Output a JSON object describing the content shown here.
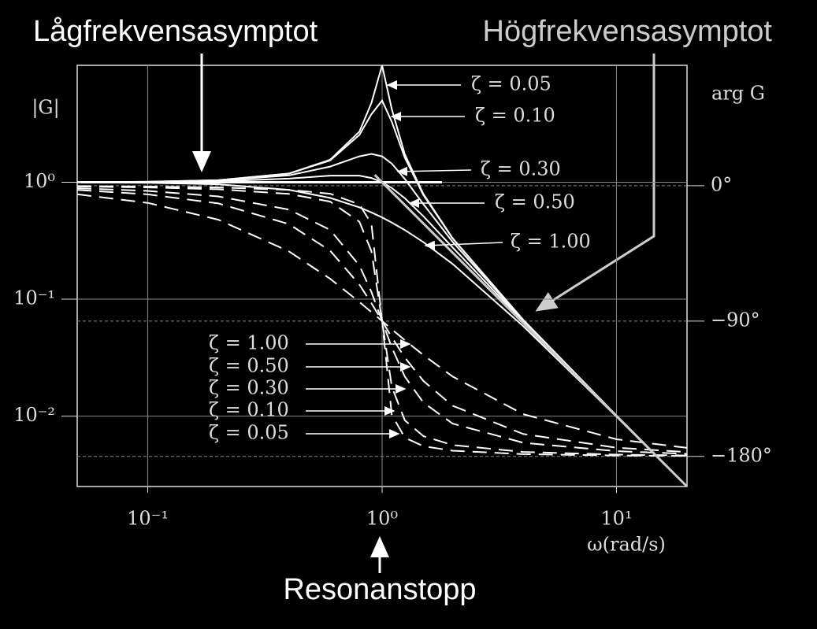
{
  "chart_data": {
    "type": "line",
    "x_label": "ω(rad/s)",
    "y_label": "|G|",
    "y2_label": "arg G",
    "xscale": "log",
    "yscale": "log",
    "xlim": [
      0.05,
      20
    ],
    "ylim": [
      0.0025,
      10
    ],
    "y2lim": [
      -200,
      80
    ],
    "xticks": [
      {
        "value": 0.1,
        "label": "10⁻¹"
      },
      {
        "value": 1,
        "label": "10⁰"
      },
      {
        "value": 10,
        "label": "10¹"
      }
    ],
    "yticks": [
      {
        "value": 0.01,
        "label": "10⁻²"
      },
      {
        "value": 0.1,
        "label": "10⁻¹"
      },
      {
        "value": 1,
        "label": "10⁰"
      }
    ],
    "y2ticks": [
      {
        "value": -180,
        "label": "−180°"
      },
      {
        "value": -90,
        "label": "−90°"
      },
      {
        "value": 0,
        "label": "0°"
      }
    ],
    "grid": true,
    "x": [
      0.05,
      0.1,
      0.2,
      0.4,
      0.6,
      0.8,
      0.9,
      1,
      1.1,
      1.25,
      1.5,
      2,
      4,
      10,
      20
    ],
    "series": [
      {
        "name": "ζ = 0.05",
        "color": "#ffffff",
        "values": [
          1.003,
          1.01,
          1.041,
          1.189,
          1.556,
          2.712,
          4.757,
          10,
          4.218,
          1.736,
          0.794,
          0.333,
          0.0666,
          0.0101,
          0.002506
        ]
      },
      {
        "name": "ζ = 0.10",
        "color": "#ffffff",
        "values": [
          1.002,
          1.01,
          1.041,
          1.185,
          1.536,
          2.538,
          3.821,
          5,
          3.288,
          1.625,
          0.778,
          0.33,
          0.0666,
          0.0101,
          0.002506
        ]
      },
      {
        "name": "ζ = 0.30",
        "color": "#ffffff",
        "values": [
          1.002,
          1.008,
          1.034,
          1.145,
          1.362,
          1.667,
          1.747,
          1.667,
          1.444,
          1.067,
          0.649,
          0.3095,
          0.0658,
          0.01008,
          0.002505
        ]
      },
      {
        "name": "ζ = 0.50",
        "color": "#ffffff",
        "values": [
          1.001,
          1.005,
          1.02,
          1.075,
          1.14,
          1.14,
          1.087,
          1,
          0.893,
          0.73,
          0.512,
          0.277,
          0.0644,
          0.01005,
          0.002503
        ]
      },
      {
        "name": "ζ = 1.00",
        "color": "#ffffff",
        "values": [
          0.9975,
          0.9901,
          0.9615,
          0.8621,
          0.7353,
          0.6098,
          0.5525,
          0.5,
          0.4525,
          0.3902,
          0.3077,
          0.2,
          0.0588,
          0.0099,
          0.002494
        ]
      },
      {
        "name": "ζ = 1.00",
        "color": "#ffffff",
        "axis": "y2",
        "dashed": true,
        "values": [
          -5.72,
          -11.42,
          -22.62,
          -43.6,
          -61.9,
          -77.3,
          -84.0,
          -90,
          -95.5,
          -102.7,
          -112.6,
          -126.9,
          -151.9,
          -168.6,
          -174.3
        ]
      },
      {
        "name": "ζ = 0.50",
        "color": "#ffffff",
        "axis": "y2",
        "dashed": true,
        "values": [
          -2.87,
          -5.77,
          -11.8,
          -25.5,
          -43.2,
          -65.8,
          -78.1,
          -90,
          -100.8,
          -114.2,
          -129.8,
          -146.3,
          -165.1,
          -174.2,
          -177.1
        ]
      },
      {
        "name": "ζ = 0.30",
        "color": "#ffffff",
        "axis": "y2",
        "dashed": true,
        "values": [
          -1.72,
          -3.47,
          -7.13,
          -15.9,
          -29.4,
          -53.1,
          -70.6,
          -90,
          -107.6,
          -126.9,
          -144.2,
          -158.2,
          -170.9,
          -176.5,
          -178.3
        ]
      },
      {
        "name": "ζ = 0.10",
        "color": "#ffffff",
        "axis": "y2",
        "dashed": true,
        "values": [
          -0.57,
          -1.16,
          -2.39,
          -5.44,
          -10.6,
          -24.0,
          -43.5,
          -90,
          -133.7,
          -156.0,
          -166.5,
          -172.4,
          -177.0,
          -178.8,
          -179.4
        ]
      },
      {
        "name": "ζ = 0.05",
        "color": "#ffffff",
        "axis": "y2",
        "dashed": true,
        "values": [
          -0.29,
          -0.58,
          -1.19,
          -2.73,
          -5.36,
          -12.5,
          -25.3,
          -90,
          -152.4,
          -167.5,
          -173.2,
          -176.2,
          -178.5,
          -179.4,
          -179.7
        ]
      }
    ],
    "asymptotes": [
      {
        "name": "Lågfrekvensasymptot",
        "color": "#ffffff",
        "x": [
          0.052,
          1.8
        ],
        "values": [
          1,
          1
        ]
      },
      {
        "name": "Högfrekvensasymptot",
        "color": "#cccccc",
        "x": [
          0.93,
          20
        ],
        "values": [
          1.156,
          0.0025
        ]
      }
    ],
    "annotation": "Resonanstopp"
  }
}
